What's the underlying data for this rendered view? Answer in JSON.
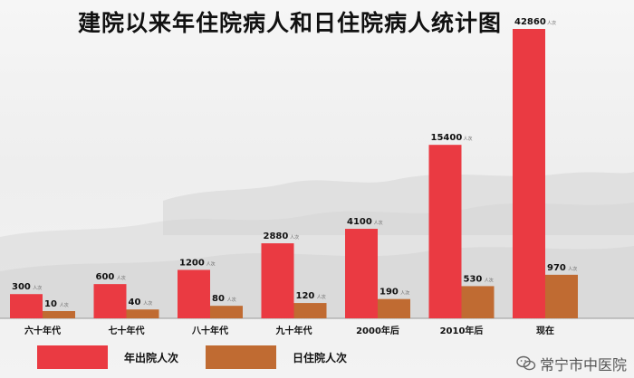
{
  "title": "建院以来年住院病人和日住院病人统计图",
  "value_unit": "人次",
  "legend": [
    {
      "label": "年出院人次",
      "color": "#ea3a42"
    },
    {
      "label": "日住院人次",
      "color": "#c06b32"
    }
  ],
  "watermark": {
    "text": "常宁市中医院",
    "icon": "wechat-icon"
  },
  "chart_data": {
    "type": "bar",
    "title": "建院以来年住院病人和日住院病人统计图",
    "categories": [
      "六十年代",
      "七十年代",
      "八十年代",
      "九十年代",
      "2000年后",
      "2010年后",
      "现在"
    ],
    "series": [
      {
        "name": "年出院人次",
        "color": "#ea3a42",
        "values": [
          300,
          600,
          1200,
          2880,
          4100,
          15400,
          42860
        ]
      },
      {
        "name": "日住院人次",
        "color": "#c06b32",
        "values": [
          10,
          40,
          80,
          120,
          190,
          530,
          970
        ]
      }
    ],
    "scale": "non-linear (bar heights not proportional)",
    "legend_position": "bottom",
    "grid": false
  }
}
